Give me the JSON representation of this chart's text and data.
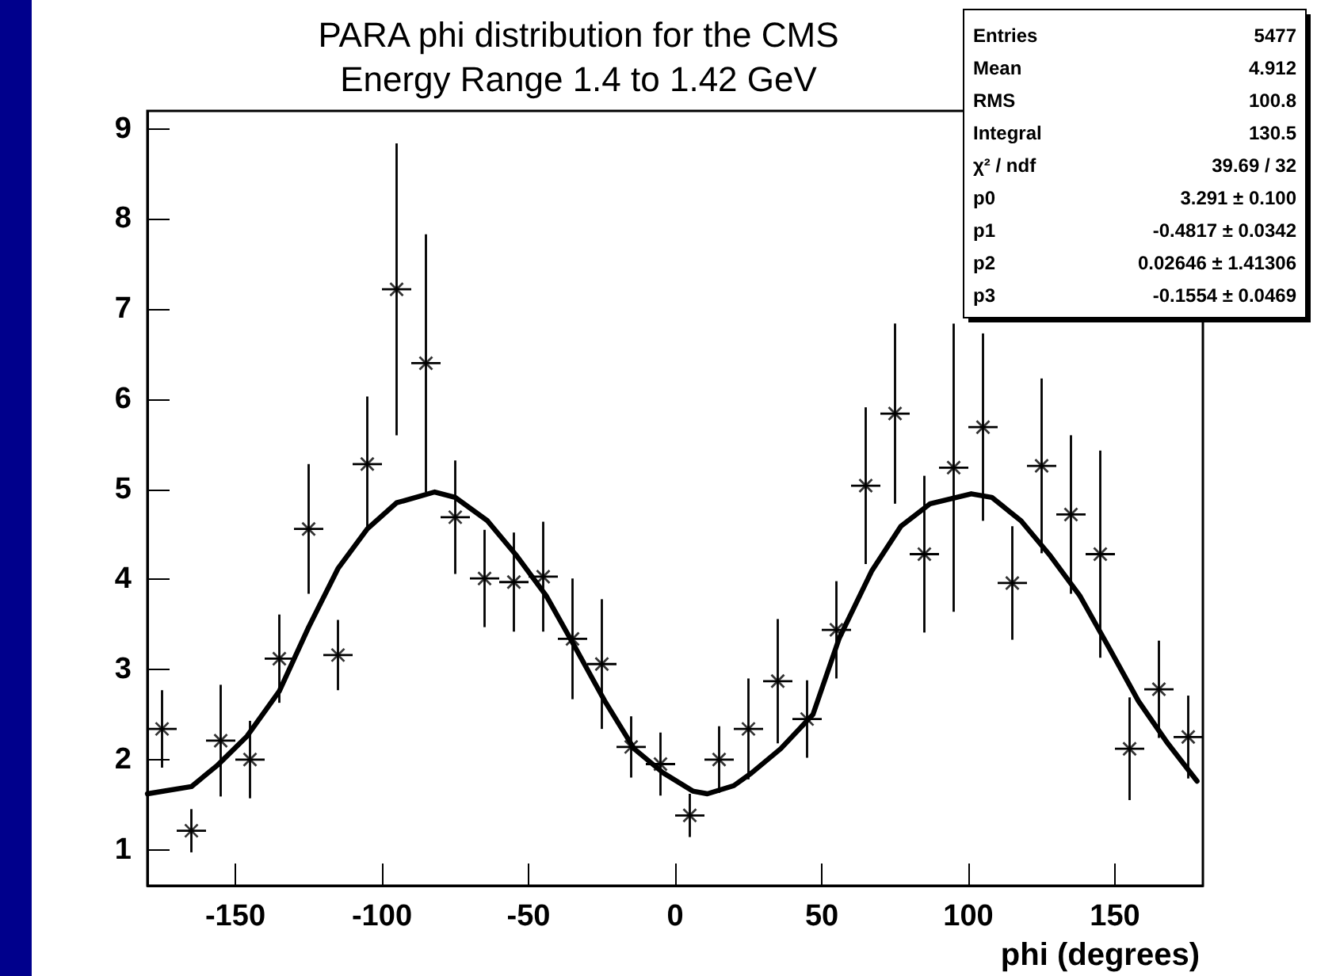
{
  "chart_data": {
    "type": "scatter",
    "title": "PARA phi distribution for the CMS",
    "subtitle": "Energy Range 1.4 to 1.42 GeV",
    "xlabel": "phi (degrees)",
    "xlim": [
      -180,
      180
    ],
    "xticks": [
      -150,
      -100,
      -50,
      0,
      50,
      100,
      150
    ],
    "ylim": [
      0.6,
      9.2
    ],
    "yticks": [
      1,
      2,
      3,
      4,
      5,
      6,
      7,
      8,
      9
    ],
    "annotations": [
      "Entries",
      "5477",
      "Mean",
      "4.912",
      "RMS",
      "100.8",
      "Integral",
      "130.5",
      "χ² / ndf",
      "39.69 / 32",
      "p0",
      "3.291 ± 0.100",
      "p1",
      "-0.4817 ± 0.0342",
      "p2",
      "0.02646 ± 1.41306",
      "p3",
      "-0.1554 ± 0.0469"
    ],
    "series": [
      {
        "marker": "cross",
        "color": "#000000",
        "x": [
          -175,
          -165,
          -155,
          -145,
          -135,
          -125,
          -115,
          -105,
          -95,
          -85,
          -75,
          -65,
          -55,
          -45,
          -35,
          -25,
          -15,
          -5,
          5,
          15,
          25,
          35,
          45,
          55,
          65,
          75,
          85,
          95,
          105,
          115,
          125,
          135,
          145,
          155,
          165,
          175
        ],
        "values": [
          2.34,
          1.21,
          2.21,
          2.0,
          3.12,
          4.56,
          3.16,
          5.28,
          7.22,
          6.4,
          4.69,
          4.01,
          3.97,
          4.03,
          3.34,
          3.06,
          2.14,
          1.95,
          1.38,
          2.0,
          2.34,
          2.87,
          2.45,
          3.44,
          5.04,
          5.84,
          4.28,
          5.24,
          5.69,
          3.96,
          5.26,
          4.72,
          4.28,
          2.12,
          2.78,
          2.25
        ],
        "errors": [
          0.43,
          0.24,
          0.62,
          0.43,
          0.49,
          0.72,
          0.39,
          0.75,
          1.62,
          1.43,
          0.63,
          0.54,
          0.55,
          0.61,
          0.67,
          0.72,
          0.34,
          0.35,
          0.24,
          0.37,
          0.56,
          0.69,
          0.43,
          0.54,
          0.87,
          1.0,
          0.87,
          1.6,
          1.04,
          0.63,
          0.97,
          0.88,
          1.15,
          0.57,
          0.54,
          0.46
        ],
        "xerrors": [
          5,
          5,
          5,
          5,
          5,
          5,
          5,
          5,
          5,
          5,
          5,
          5,
          5,
          5,
          5,
          5,
          5,
          5,
          5,
          5,
          5,
          5,
          5,
          5,
          5,
          5,
          5,
          5,
          5,
          5,
          5,
          5,
          5,
          5,
          5,
          5
        ]
      },
      {
        "type": "line",
        "marker": "none",
        "color": "#000000",
        "x": [
          -180,
          -165,
          -156,
          -146,
          -135,
          -125,
          -115,
          -105,
          -95,
          -82,
          -75,
          -64,
          -54,
          -44,
          -34,
          -24,
          -14,
          -4,
          6,
          11,
          20,
          26,
          36,
          47,
          56,
          67,
          77,
          87,
          101,
          108,
          118,
          128,
          138,
          148,
          158,
          168,
          178
        ],
        "values": [
          1.62,
          1.7,
          1.94,
          2.26,
          2.76,
          3.47,
          4.12,
          4.56,
          4.85,
          4.97,
          4.91,
          4.65,
          4.26,
          3.82,
          3.24,
          2.65,
          2.12,
          1.85,
          1.65,
          1.62,
          1.71,
          1.85,
          2.12,
          2.5,
          3.35,
          4.09,
          4.59,
          4.84,
          4.95,
          4.91,
          4.65,
          4.26,
          3.82,
          3.24,
          2.65,
          2.18,
          1.76
        ]
      }
    ]
  }
}
